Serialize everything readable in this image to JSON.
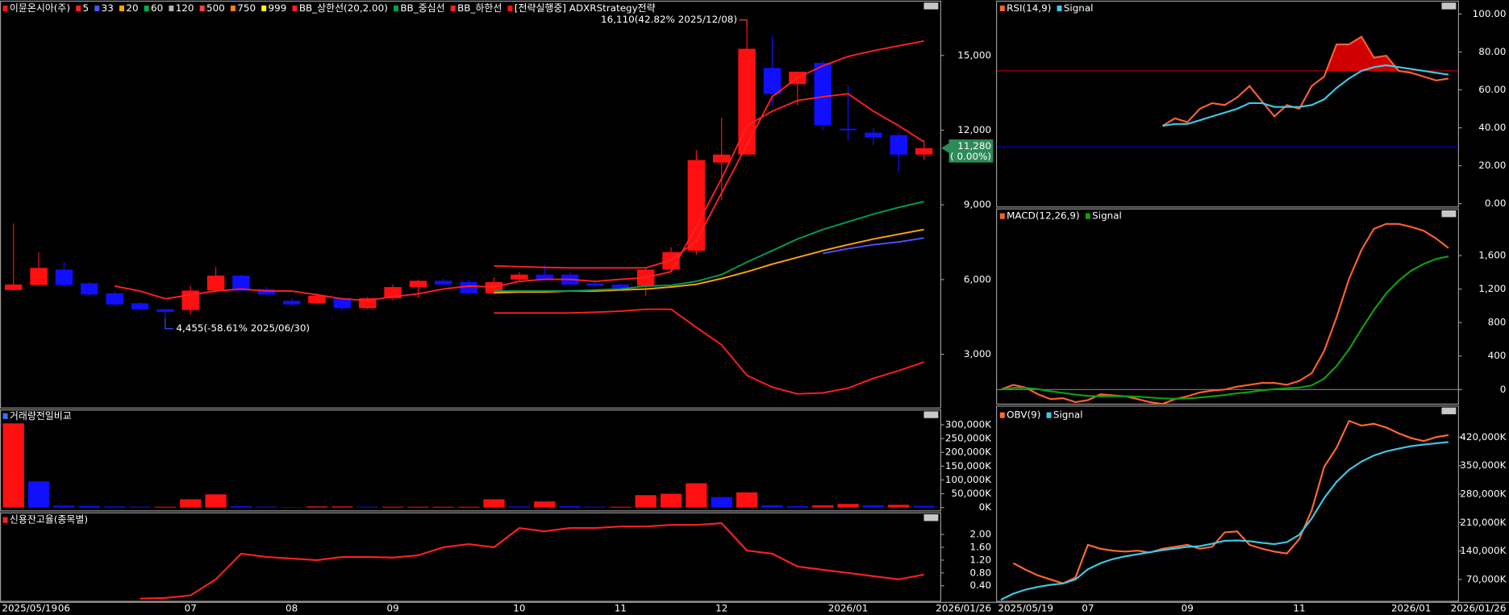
{
  "chart_data": [
    {
      "type": "candlestick",
      "name": "이뮨온시아(주)",
      "up_color": "#ff1010",
      "down_color": "#1010ff",
      "open": [
        5580,
        5780,
        6400,
        5850,
        5450,
        5050,
        4810,
        4780,
        5560,
        6160,
        5620,
        5150,
        5050,
        5250,
        4850,
        5250,
        5700,
        5950,
        5900,
        5450,
        6000,
        6200,
        6200,
        5850,
        5800,
        5750,
        6400,
        7160,
        10700,
        11020,
        14500,
        13850,
        14700,
        12060,
        11900,
        11800,
        11020
      ],
      "high": [
        8250,
        7100,
        6700,
        5900,
        5500,
        5100,
        4830,
        5750,
        6500,
        6200,
        5700,
        5250,
        5450,
        5300,
        5300,
        5800,
        6000,
        6050,
        6000,
        6100,
        6300,
        6600,
        6300,
        5900,
        5850,
        6500,
        7300,
        11200,
        12500,
        16110,
        15800,
        14350,
        14800,
        13800,
        12100,
        11900,
        11600
      ],
      "low": [
        5550,
        5780,
        5700,
        5350,
        4950,
        4770,
        4455,
        4600,
        5500,
        5500,
        5350,
        4950,
        5000,
        4750,
        4800,
        5150,
        5250,
        5750,
        5400,
        5400,
        5950,
        5950,
        5750,
        5700,
        5600,
        5350,
        6300,
        7000,
        9200,
        11020,
        13000,
        13000,
        12000,
        11600,
        11400,
        10300,
        10800
      ],
      "close": [
        5800,
        6470,
        5780,
        5400,
        5000,
        4800,
        4700,
        5560,
        6160,
        5560,
        5400,
        5000,
        5350,
        4850,
        5250,
        5700,
        5950,
        5800,
        5450,
        5900,
        6200,
        6000,
        5800,
        5750,
        5650,
        6400,
        7100,
        10800,
        11020,
        15270,
        13450,
        14350,
        12200,
        12000,
        11700,
        11020,
        11280
      ],
      "series": [
        {
          "name": "5",
          "color": "#ff2020",
          "values": [
            null,
            null,
            null,
            null,
            5740,
            5540,
            5230,
            5390,
            5540,
            5620,
            5540,
            5540,
            5390,
            5230,
            5160,
            5310,
            5430,
            5620,
            5740,
            5700,
            5930,
            6010,
            6010,
            5930,
            6010,
            6080,
            6320,
            8130,
            10060,
            12180,
            12760,
            13190,
            13340,
            13460,
            12760,
            12180,
            11530
          ]
        },
        {
          "name": "33",
          "color": "#5050ff",
          "values": [
            null,
            null,
            null,
            null,
            null,
            null,
            null,
            null,
            null,
            null,
            null,
            null,
            null,
            null,
            null,
            null,
            null,
            null,
            null,
            null,
            null,
            null,
            null,
            null,
            null,
            null,
            null,
            null,
            null,
            null,
            null,
            null,
            7050,
            7240,
            7400,
            7510,
            7670
          ]
        },
        {
          "name": "20",
          "color": "#ffa500",
          "values": [
            null,
            null,
            null,
            null,
            null,
            null,
            null,
            null,
            null,
            null,
            null,
            null,
            null,
            null,
            null,
            null,
            null,
            null,
            null,
            5470,
            5500,
            5500,
            5540,
            5540,
            5580,
            5620,
            5700,
            5810,
            6040,
            6310,
            6620,
            6890,
            7160,
            7400,
            7630,
            7820,
            8010
          ]
        },
        {
          "name": "60",
          "color": "#00b050"
        },
        {
          "name": "120",
          "color": "#b0b0b0"
        },
        {
          "name": "500",
          "color": "#ff4040"
        },
        {
          "name": "750",
          "color": "#ff8000"
        },
        {
          "name": "999",
          "color": "#ffff00"
        },
        {
          "name": "BB_상한선(20,2.00)",
          "color": "#ff2020",
          "values": [
            null,
            null,
            null,
            null,
            null,
            null,
            null,
            null,
            null,
            null,
            null,
            null,
            null,
            null,
            null,
            null,
            null,
            null,
            null,
            6550,
            6520,
            6490,
            6470,
            6470,
            6470,
            6470,
            6780,
            7550,
            9480,
            11410,
            13340,
            14110,
            14580,
            14960,
            15190,
            15390,
            15580
          ]
        },
        {
          "name": "BB_중심선",
          "color": "#00a050",
          "values": [
            null,
            null,
            null,
            null,
            null,
            null,
            null,
            null,
            null,
            null,
            null,
            null,
            null,
            null,
            null,
            null,
            null,
            null,
            null,
            5540,
            5540,
            5540,
            5540,
            5580,
            5620,
            5740,
            5770,
            5930,
            6200,
            6700,
            7160,
            7630,
            8010,
            8320,
            8630,
            8900,
            9130
          ]
        },
        {
          "name": "BB_하한선",
          "color": "#ff2020",
          "values": [
            null,
            null,
            null,
            null,
            null,
            null,
            null,
            null,
            null,
            null,
            null,
            null,
            null,
            null,
            null,
            null,
            null,
            null,
            null,
            4660,
            4660,
            4660,
            4660,
            4690,
            4730,
            4810,
            4810,
            4080,
            3380,
            2150,
            1680,
            1410,
            1450,
            1640,
            2030,
            2340,
            2690
          ]
        }
      ],
      "strategy_label": "[전략실행중] ADXRStrategy전략",
      "annotations": [
        {
          "text": "16,110(42.82% 2025/12/08)",
          "color": "#ff3030"
        },
        {
          "text": "4,455(-58.61% 2025/06/30)",
          "color": "#3050ff"
        }
      ],
      "last_price": "11,280",
      "last_change": "( 0.00%)",
      "last_color": "#2e8b57",
      "ylim": [
        900,
        17200
      ],
      "yticks": [
        {
          "value": 3000,
          "label": "3,000"
        },
        {
          "value": 6000,
          "label": "6,000"
        },
        {
          "value": 9000,
          "label": "9,000"
        },
        {
          "value": 12000,
          "label": "12,000"
        },
        {
          "value": 15000,
          "label": "15,000"
        }
      ]
    },
    {
      "type": "bar",
      "title": "거래량전일비교",
      "title_color": "#4070ff",
      "up_color": "#ff1010",
      "down_color": "#1010ff",
      "values": [
        305000,
        95000,
        7000,
        6000,
        4000,
        3000,
        3000,
        30000,
        48000,
        5000,
        3000,
        2000,
        4000,
        4000,
        3000,
        3000,
        3000,
        3000,
        3000,
        30000,
        4000,
        22000,
        5000,
        3000,
        3000,
        45000,
        50000,
        88000,
        38000,
        55000,
        8000,
        5000,
        8000,
        13000,
        8000,
        10000,
        6000
      ],
      "ylim": [
        0,
        345000
      ],
      "yticks": [
        {
          "value": 0,
          "label": "0K"
        },
        {
          "value": 50000,
          "label": "50,000K"
        },
        {
          "value": 100000,
          "label": "100,000K"
        },
        {
          "value": 150000,
          "label": "150,000K"
        },
        {
          "value": 200000,
          "label": "200,000K"
        },
        {
          "value": 250000,
          "label": "250,000K"
        },
        {
          "value": 300000,
          "label": "300,000K"
        }
      ]
    },
    {
      "type": "line",
      "categories": [
        "2025/05/19",
        null,
        "06",
        null,
        null,
        null,
        null,
        "07",
        null,
        null,
        null,
        "08",
        null,
        null,
        null,
        "09",
        null,
        null,
        null,
        null,
        "10",
        null,
        null,
        null,
        "11",
        null,
        null,
        null,
        "12",
        null,
        null,
        null,
        null,
        "2026/01",
        null,
        null,
        "2026/01/26"
      ],
      "series": [
        {
          "name": "신용잔고율(종목별)",
          "color": "#ff2020",
          "values": [
            null,
            null,
            null,
            null,
            null,
            0.0,
            0.02,
            0.1,
            0.6,
            1.4,
            1.3,
            1.25,
            1.2,
            1.3,
            1.3,
            1.28,
            1.35,
            1.6,
            1.7,
            1.6,
            2.2,
            2.1,
            2.2,
            2.2,
            2.25,
            2.25,
            2.3,
            2.3,
            2.35,
            1.5,
            1.4,
            1.0,
            0.9,
            0.8,
            0.7,
            0.6,
            0.75
          ]
        }
      ],
      "ylim": [
        -0.1,
        2.6
      ],
      "yticks": [
        {
          "value": 0.4,
          "label": "0.40"
        },
        {
          "value": 0.8,
          "label": "0.80"
        },
        {
          "value": 1.2,
          "label": "1.20"
        },
        {
          "value": 1.6,
          "label": "1.60"
        },
        {
          "value": 2.0,
          "label": "2.00"
        }
      ]
    },
    {
      "type": "line",
      "series": [
        {
          "name": "RSI(14,9)",
          "color": "#ff6030",
          "values": [
            null,
            null,
            null,
            null,
            null,
            null,
            null,
            null,
            null,
            null,
            null,
            null,
            null,
            41,
            45,
            43,
            50,
            53,
            52,
            56,
            62,
            54,
            46,
            52,
            50,
            62,
            67,
            84,
            84,
            88,
            77,
            78,
            70,
            69,
            67,
            65,
            66
          ]
        },
        {
          "name": "Signal",
          "color": "#40c8e8",
          "values": [
            null,
            null,
            null,
            null,
            null,
            null,
            null,
            null,
            null,
            null,
            null,
            null,
            null,
            41,
            42,
            42,
            44,
            46,
            48,
            50,
            53,
            53,
            51,
            51,
            51,
            52,
            55,
            61,
            66,
            70,
            72,
            73,
            72,
            71,
            70,
            69,
            68
          ]
        }
      ],
      "hlines": [
        {
          "value": 70,
          "color": "#c00000"
        },
        {
          "value": 30,
          "color": "#0000c0"
        }
      ],
      "fill_above": 70,
      "fill_color": "#d00000",
      "ylim": [
        -2,
        106
      ],
      "yticks": [
        {
          "value": 0,
          "label": "0.00"
        },
        {
          "value": 20,
          "label": "20.00"
        },
        {
          "value": 40,
          "label": "40.00"
        },
        {
          "value": 60,
          "label": "60.00"
        },
        {
          "value": 80,
          "label": "80.00"
        },
        {
          "value": 100,
          "label": "100.00"
        }
      ]
    },
    {
      "type": "line",
      "series": [
        {
          "name": "MACD(12,26,9)",
          "color": "#ff6030",
          "values": [
            0,
            57,
            23,
            -57,
            -115,
            -103,
            -150,
            -126,
            -57,
            -69,
            -80,
            -115,
            -150,
            -172,
            -115,
            -80,
            -35,
            -12,
            0,
            35,
            57,
            80,
            80,
            57,
            104,
            196,
            460,
            862,
            1322,
            1667,
            1920,
            1978,
            1978,
            1943,
            1897,
            1805,
            1690
          ]
        },
        {
          "name": "Signal",
          "color": "#10a010",
          "values": [
            0,
            20,
            20,
            5,
            -20,
            -40,
            -60,
            -75,
            -80,
            -80,
            -80,
            -85,
            -95,
            -105,
            -110,
            -105,
            -95,
            -80,
            -65,
            -45,
            -30,
            -10,
            5,
            15,
            25,
            50,
            130,
            280,
            480,
            720,
            950,
            1150,
            1300,
            1420,
            1500,
            1560,
            1590
          ]
        }
      ],
      "hlines": [
        {
          "value": 0,
          "color": "#808080"
        }
      ],
      "ylim": [
        -180,
        2140
      ],
      "yticks": [
        0,
        400,
        800,
        {
          "value": 1200,
          "label": "1,200"
        },
        {
          "value": 1600,
          "label": "1,600"
        }
      ]
    },
    {
      "type": "line",
      "categories": [
        "2025/05/19",
        null,
        null,
        null,
        null,
        null,
        null,
        "07",
        null,
        null,
        null,
        null,
        null,
        null,
        null,
        "09",
        null,
        null,
        null,
        null,
        null,
        null,
        null,
        null,
        "11",
        null,
        null,
        null,
        null,
        null,
        null,
        null,
        null,
        "2026/01",
        null,
        null,
        "2026/01/26"
      ],
      "series": [
        {
          "name": "OBV(9)",
          "color": "#ff6a30",
          "values": [
            null,
            110200,
            93700,
            79500,
            70000,
            60500,
            74700,
            155100,
            145700,
            141000,
            138600,
            141000,
            136200,
            145700,
            150400,
            155100,
            145700,
            150400,
            185900,
            188300,
            155100,
            145700,
            138600,
            133900,
            169300,
            240300,
            346700,
            394000,
            460200,
            448400,
            453100,
            443700,
            429500,
            417700,
            410600,
            420000,
            425000
          ]
        },
        {
          "name": "Signal",
          "color": "#40c8e8",
          "values": [
            20000,
            35000,
            45000,
            52000,
            57000,
            60000,
            70000,
            95000,
            110000,
            120000,
            127000,
            132000,
            137000,
            142000,
            146000,
            150000,
            152000,
            158000,
            165000,
            166000,
            164000,
            160000,
            157000,
            162000,
            180000,
            220000,
            270000,
            310000,
            340000,
            360000,
            375000,
            385000,
            392000,
            398000,
            402000,
            405000,
            408000
          ]
        }
      ],
      "ylim": [
        15000,
        493000
      ],
      "yticks": [
        {
          "value": 70000,
          "label": "70,000K"
        },
        {
          "value": 140000,
          "label": "140,000K"
        },
        {
          "value": 210000,
          "label": "210,000K"
        },
        {
          "value": 280000,
          "label": "280,000K"
        },
        {
          "value": 350000,
          "label": "350,000K"
        },
        {
          "value": 420000,
          "label": "420,000K"
        }
      ]
    }
  ]
}
